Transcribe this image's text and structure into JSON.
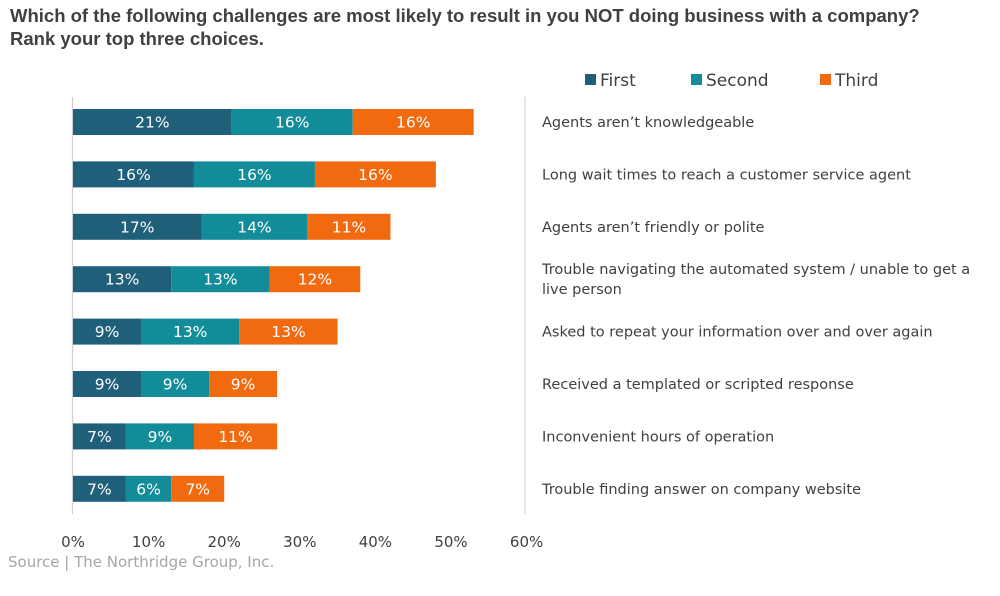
{
  "title_line1": "Which of the following challenges are most likely to result in you NOT doing business with a company?",
  "title_line2": "Rank your top three choices.",
  "source": "Source | The Northridge Group, Inc.",
  "chart_data": {
    "type": "bar",
    "orientation": "horizontal",
    "stacked": true,
    "title": "Which of the following challenges are most likely to result in you NOT doing business with a company? Rank your top three choices.",
    "categories": [
      "Agents aren't knowledgeable",
      "Long wait times to reach a customer service agent",
      "Agents aren't friendly or polite",
      "Trouble navigating the automated system / unable to get a live person",
      "Asked to repeat your information over and over again",
      "Received a templated or scripted response",
      "Inconvenient hours of operation",
      "Trouble finding answer on company website"
    ],
    "category_display": [
      [
        "Agents aren’t knowledgeable"
      ],
      [
        "Long wait times to reach a customer service agent"
      ],
      [
        "Agents aren’t friendly or polite"
      ],
      [
        "Trouble navigating the automated system / unable to get a",
        "live person"
      ],
      [
        "Asked to repeat your information over and over again"
      ],
      [
        "Received a templated or scripted response"
      ],
      [
        "Inconvenient hours of operation"
      ],
      [
        "Trouble finding answer on company website"
      ]
    ],
    "series": [
      {
        "name": "First",
        "color": "#1f5f7a",
        "values": [
          21,
          16,
          17,
          13,
          9,
          9,
          7,
          7
        ]
      },
      {
        "name": "Second",
        "color": "#138c99",
        "values": [
          16,
          16,
          14,
          13,
          13,
          9,
          9,
          6
        ]
      },
      {
        "name": "Third",
        "color": "#f26a10",
        "values": [
          16,
          16,
          11,
          12,
          13,
          9,
          11,
          7
        ]
      }
    ],
    "value_suffix": "%",
    "xlim": [
      0,
      60
    ],
    "xticks": [
      0,
      10,
      20,
      30,
      40,
      50,
      60
    ],
    "xtick_labels": [
      "0%",
      "10%",
      "20%",
      "30%",
      "40%",
      "50%",
      "60%"
    ],
    "xlabel": "",
    "ylabel": "",
    "grid": false,
    "legend_position": "top-right",
    "label_color": "#ffffff",
    "axis_color": "#d0d0d0",
    "text_color": "#404040"
  }
}
